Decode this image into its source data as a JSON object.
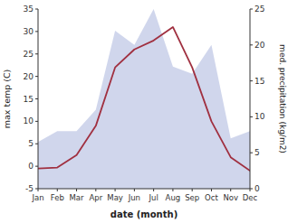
{
  "chart_data": {
    "type": "line",
    "xlabel": "date (month)",
    "ylabel": "max temp (C)",
    "y2label": "med. precipitation (kg/m2)",
    "categories": [
      "Jan",
      "Feb",
      "Mar",
      "Apr",
      "May",
      "Jun",
      "Jul",
      "Aug",
      "Sep",
      "Oct",
      "Nov",
      "Dec"
    ],
    "series": [
      {
        "type": "area",
        "axis": "y2",
        "color": "#aab4dd",
        "values": [
          6.5,
          8.0,
          8.0,
          11.0,
          22.0,
          20.0,
          25.0,
          17.0,
          16.0,
          20.0,
          7.0,
          8.0
        ]
      },
      {
        "type": "line",
        "color": "#a03040",
        "values": [
          -0.5,
          -0.3,
          2.5,
          9.0,
          22.0,
          26.0,
          28.0,
          31.0,
          22.0,
          10.0,
          2.0,
          -1.0
        ]
      }
    ],
    "ylim": [
      -5,
      35
    ],
    "yticks": [
      -5,
      0,
      5,
      10,
      15,
      20,
      25,
      30,
      35
    ],
    "y2lim": [
      0,
      25
    ],
    "y2ticks": [
      0,
      5,
      10,
      15,
      20,
      25
    ],
    "grid": false
  }
}
